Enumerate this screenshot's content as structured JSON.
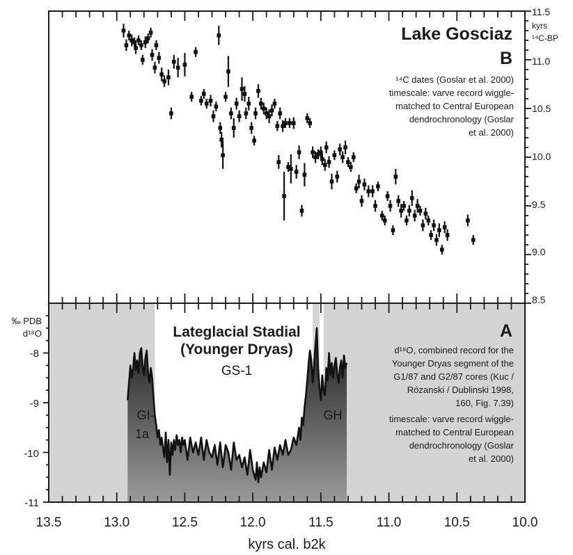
{
  "chart_data": [
    {
      "panel_id": "B",
      "type": "scatter",
      "title": "Lake Gosciaz",
      "panel_label": "B",
      "annotation": [
        "¹⁴C dates (Goslar et al. 2000)",
        "timescale: varve record wiggle-",
        "matched to Central European",
        "dendrochronology (Goslar",
        "et al. 2000)"
      ],
      "ylabel": [
        "kyrs",
        "¹⁴C-BP"
      ],
      "yticks": [
        "11.5",
        "11.0",
        "10.5",
        "10.0",
        "9.5",
        "9.0",
        "8.5"
      ],
      "ylim": [
        8.5,
        11.5
      ],
      "x_reversed": true,
      "grid": false,
      "points": [
        {
          "x": 12.95,
          "y": 11.3,
          "e": 0.07
        },
        {
          "x": 12.93,
          "y": 11.15,
          "e": 0.06
        },
        {
          "x": 12.91,
          "y": 11.25,
          "e": 0.05
        },
        {
          "x": 12.89,
          "y": 11.2,
          "e": 0.06
        },
        {
          "x": 12.87,
          "y": 11.18,
          "e": 0.05
        },
        {
          "x": 12.86,
          "y": 11.12,
          "e": 0.06
        },
        {
          "x": 12.84,
          "y": 11.2,
          "e": 0.05
        },
        {
          "x": 12.82,
          "y": 11.15,
          "e": 0.05
        },
        {
          "x": 12.81,
          "y": 11.0,
          "e": 0.05
        },
        {
          "x": 12.79,
          "y": 11.18,
          "e": 0.06
        },
        {
          "x": 12.77,
          "y": 11.22,
          "e": 0.05
        },
        {
          "x": 12.75,
          "y": 11.28,
          "e": 0.05
        },
        {
          "x": 12.74,
          "y": 11.05,
          "e": 0.06
        },
        {
          "x": 12.72,
          "y": 10.92,
          "e": 0.06
        },
        {
          "x": 12.71,
          "y": 11.15,
          "e": 0.05
        },
        {
          "x": 12.69,
          "y": 11.02,
          "e": 0.06
        },
        {
          "x": 12.67,
          "y": 10.85,
          "e": 0.07
        },
        {
          "x": 12.65,
          "y": 10.78,
          "e": 0.06
        },
        {
          "x": 12.62,
          "y": 10.82,
          "e": 0.08
        },
        {
          "x": 12.6,
          "y": 10.45,
          "e": 0.06
        },
        {
          "x": 12.58,
          "y": 10.98,
          "e": 0.07
        },
        {
          "x": 12.55,
          "y": 10.92,
          "e": 0.1
        },
        {
          "x": 12.5,
          "y": 10.95,
          "e": 0.12
        },
        {
          "x": 12.45,
          "y": 10.62,
          "e": 0.05
        },
        {
          "x": 12.42,
          "y": 11.08,
          "e": 0.05
        },
        {
          "x": 12.38,
          "y": 10.58,
          "e": 0.05
        },
        {
          "x": 12.36,
          "y": 10.65,
          "e": 0.05
        },
        {
          "x": 12.34,
          "y": 10.55,
          "e": 0.05
        },
        {
          "x": 12.31,
          "y": 10.58,
          "e": 0.06
        },
        {
          "x": 12.29,
          "y": 10.42,
          "e": 0.06
        },
        {
          "x": 12.27,
          "y": 10.52,
          "e": 0.05
        },
        {
          "x": 12.25,
          "y": 11.25,
          "e": 0.1
        },
        {
          "x": 12.24,
          "y": 10.3,
          "e": 0.06
        },
        {
          "x": 12.23,
          "y": 10.18,
          "e": 0.08
        },
        {
          "x": 12.22,
          "y": 10.02,
          "e": 0.14
        },
        {
          "x": 12.2,
          "y": 10.62,
          "e": 0.05
        },
        {
          "x": 12.18,
          "y": 10.88,
          "e": 0.16
        },
        {
          "x": 12.16,
          "y": 10.45,
          "e": 0.06
        },
        {
          "x": 12.14,
          "y": 10.3,
          "e": 0.1
        },
        {
          "x": 12.12,
          "y": 10.55,
          "e": 0.06
        },
        {
          "x": 12.1,
          "y": 10.42,
          "e": 0.06
        },
        {
          "x": 12.08,
          "y": 10.7,
          "e": 0.12
        },
        {
          "x": 12.06,
          "y": 10.65,
          "e": 0.08
        },
        {
          "x": 12.05,
          "y": 10.45,
          "e": 0.06
        },
        {
          "x": 12.03,
          "y": 10.55,
          "e": 0.07
        },
        {
          "x": 12.01,
          "y": 10.3,
          "e": 0.06
        },
        {
          "x": 11.99,
          "y": 10.17,
          "e": 0.05
        },
        {
          "x": 11.98,
          "y": 10.45,
          "e": 0.06
        },
        {
          "x": 11.96,
          "y": 10.68,
          "e": 0.07
        },
        {
          "x": 11.94,
          "y": 10.55,
          "e": 0.06
        },
        {
          "x": 11.92,
          "y": 10.5,
          "e": 0.06
        },
        {
          "x": 11.9,
          "y": 10.45,
          "e": 0.06
        },
        {
          "x": 11.88,
          "y": 10.42,
          "e": 0.07
        },
        {
          "x": 11.86,
          "y": 10.48,
          "e": 0.06
        },
        {
          "x": 11.84,
          "y": 10.55,
          "e": 0.05
        },
        {
          "x": 11.82,
          "y": 10.32,
          "e": 0.05
        },
        {
          "x": 11.81,
          "y": 9.95,
          "e": 0.07
        },
        {
          "x": 11.8,
          "y": 10.45,
          "e": 0.06
        },
        {
          "x": 11.78,
          "y": 10.32,
          "e": 0.06
        },
        {
          "x": 11.77,
          "y": 9.6,
          "e": 0.25
        },
        {
          "x": 11.76,
          "y": 10.35,
          "e": 0.05
        },
        {
          "x": 11.74,
          "y": 9.9,
          "e": 0.05
        },
        {
          "x": 11.73,
          "y": 10.35,
          "e": 0.05
        },
        {
          "x": 11.72,
          "y": 9.88,
          "e": 0.15
        },
        {
          "x": 11.7,
          "y": 10.35,
          "e": 0.06
        },
        {
          "x": 11.68,
          "y": 9.85,
          "e": 0.07
        },
        {
          "x": 11.66,
          "y": 10.05,
          "e": 0.07
        },
        {
          "x": 11.64,
          "y": 9.45,
          "e": 0.06
        },
        {
          "x": 11.62,
          "y": 9.82,
          "e": 0.12
        },
        {
          "x": 11.6,
          "y": 10.4,
          "e": 0.05
        },
        {
          "x": 11.58,
          "y": 10.35,
          "e": 0.05
        },
        {
          "x": 11.56,
          "y": 10.05,
          "e": 0.06
        },
        {
          "x": 11.54,
          "y": 10.0,
          "e": 0.06
        },
        {
          "x": 11.52,
          "y": 10.03,
          "e": 0.05
        },
        {
          "x": 11.5,
          "y": 10.05,
          "e": 0.06
        },
        {
          "x": 11.49,
          "y": 9.98,
          "e": 0.06
        },
        {
          "x": 11.47,
          "y": 9.92,
          "e": 0.06
        },
        {
          "x": 11.46,
          "y": 10.1,
          "e": 0.06
        },
        {
          "x": 11.44,
          "y": 9.95,
          "e": 0.06
        },
        {
          "x": 11.42,
          "y": 9.75,
          "e": 0.08
        },
        {
          "x": 11.4,
          "y": 10.02,
          "e": 0.05
        },
        {
          "x": 11.38,
          "y": 9.8,
          "e": 0.06
        },
        {
          "x": 11.36,
          "y": 10.08,
          "e": 0.06
        },
        {
          "x": 11.34,
          "y": 10.0,
          "e": 0.06
        },
        {
          "x": 11.32,
          "y": 10.1,
          "e": 0.07
        },
        {
          "x": 11.3,
          "y": 9.95,
          "e": 0.05
        },
        {
          "x": 11.28,
          "y": 9.9,
          "e": 0.05
        },
        {
          "x": 11.26,
          "y": 10.0,
          "e": 0.05
        },
        {
          "x": 11.24,
          "y": 9.68,
          "e": 0.05
        },
        {
          "x": 11.22,
          "y": 9.75,
          "e": 0.07
        },
        {
          "x": 11.2,
          "y": 9.55,
          "e": 0.06
        },
        {
          "x": 11.18,
          "y": 9.72,
          "e": 0.06
        },
        {
          "x": 11.15,
          "y": 9.65,
          "e": 0.06
        },
        {
          "x": 11.12,
          "y": 9.65,
          "e": 0.06
        },
        {
          "x": 11.1,
          "y": 9.5,
          "e": 0.06
        },
        {
          "x": 11.08,
          "y": 9.7,
          "e": 0.05
        },
        {
          "x": 11.05,
          "y": 9.4,
          "e": 0.05
        },
        {
          "x": 11.03,
          "y": 9.35,
          "e": 0.05
        },
        {
          "x": 11.01,
          "y": 9.6,
          "e": 0.05
        },
        {
          "x": 10.99,
          "y": 9.5,
          "e": 0.06
        },
        {
          "x": 10.97,
          "y": 9.25,
          "e": 0.05
        },
        {
          "x": 10.95,
          "y": 9.8,
          "e": 0.08
        },
        {
          "x": 10.93,
          "y": 9.55,
          "e": 0.06
        },
        {
          "x": 10.91,
          "y": 9.45,
          "e": 0.07
        },
        {
          "x": 10.89,
          "y": 9.5,
          "e": 0.05
        },
        {
          "x": 10.87,
          "y": 9.35,
          "e": 0.05
        },
        {
          "x": 10.85,
          "y": 9.45,
          "e": 0.06
        },
        {
          "x": 10.83,
          "y": 9.58,
          "e": 0.08
        },
        {
          "x": 10.81,
          "y": 9.4,
          "e": 0.06
        },
        {
          "x": 10.79,
          "y": 9.5,
          "e": 0.07
        },
        {
          "x": 10.77,
          "y": 9.45,
          "e": 0.05
        },
        {
          "x": 10.75,
          "y": 9.3,
          "e": 0.06
        },
        {
          "x": 10.73,
          "y": 9.42,
          "e": 0.06
        },
        {
          "x": 10.71,
          "y": 9.35,
          "e": 0.05
        },
        {
          "x": 10.69,
          "y": 9.2,
          "e": 0.05
        },
        {
          "x": 10.67,
          "y": 9.3,
          "e": 0.06
        },
        {
          "x": 10.65,
          "y": 9.15,
          "e": 0.06
        },
        {
          "x": 10.63,
          "y": 9.25,
          "e": 0.07
        },
        {
          "x": 10.61,
          "y": 9.05,
          "e": 0.05
        },
        {
          "x": 10.59,
          "y": 9.28,
          "e": 0.06
        },
        {
          "x": 10.57,
          "y": 9.2,
          "e": 0.06
        },
        {
          "x": 10.42,
          "y": 9.35,
          "e": 0.06
        },
        {
          "x": 10.38,
          "y": 9.15,
          "e": 0.05
        }
      ]
    },
    {
      "panel_id": "A",
      "type": "area",
      "title": [
        "Lateglacial Stadial",
        "(Younger Dryas)"
      ],
      "subtitle": "GS-1",
      "panel_label": "A",
      "annotation": [
        "d¹⁸O, combined record for the",
        "Younger Dryas segment of the",
        "G1/87 and G2/87 cores (Kuc /",
        "Rózanski / Dublinski 1998,",
        "160, Fig. 7.39)",
        "timescale: varve record wiggle-",
        "matched to Central European",
        "dendrochronology (Goslar",
        "et al. 2000)"
      ],
      "ylabel": [
        "‰ PDB",
        "d¹⁸O"
      ],
      "yticks": [
        "-8",
        "-9",
        "-10",
        "-11"
      ],
      "ylim": [
        -11,
        -7
      ],
      "x_reversed": true,
      "region_labels": [
        [
          "GI-",
          "1a"
        ],
        [
          "GH"
        ]
      ],
      "grid": false,
      "shading": {
        "background": [
          13.5,
          10.0
        ],
        "stadial_white": [
          12.72,
          11.56
        ],
        "stadial_white_2": [
          11.51,
          11.48
        ]
      },
      "series": [
        {
          "x": [
            12.92,
            12.91,
            12.9,
            12.89,
            12.88,
            12.87,
            12.86,
            12.85,
            12.84,
            12.83,
            12.82,
            12.81,
            12.8,
            12.79,
            12.78,
            12.77,
            12.76,
            12.75,
            12.74,
            12.73,
            12.72,
            12.71,
            12.7,
            12.69,
            12.68,
            12.67,
            12.66,
            12.65,
            12.64,
            12.63,
            12.62,
            12.61,
            12.6,
            12.59,
            12.58,
            12.57,
            12.56,
            12.55,
            12.54,
            12.53,
            12.52,
            12.51,
            12.5,
            12.48,
            12.46,
            12.44,
            12.42,
            12.4,
            12.38,
            12.36,
            12.34,
            12.32,
            12.3,
            12.28,
            12.26,
            12.24,
            12.22,
            12.2,
            12.18,
            12.16,
            12.14,
            12.12,
            12.1,
            12.08,
            12.06,
            12.04,
            12.02,
            12.0,
            11.98,
            11.97,
            11.96,
            11.95,
            11.94,
            11.92,
            11.9,
            11.88,
            11.86,
            11.84,
            11.82,
            11.8,
            11.78,
            11.76,
            11.74,
            11.72,
            11.7,
            11.68,
            11.66,
            11.65,
            11.64,
            11.63,
            11.62,
            11.61,
            11.6,
            11.59,
            11.58,
            11.57,
            11.56,
            11.55,
            11.54,
            11.53,
            11.52,
            11.51,
            11.5,
            11.49,
            11.48,
            11.47,
            11.46,
            11.45,
            11.44,
            11.43,
            11.42,
            11.41,
            11.4,
            11.39,
            11.38,
            11.37,
            11.36,
            11.35,
            11.34,
            11.33,
            11.32,
            11.31
          ],
          "values": [
            -8.95,
            -8.6,
            -8.25,
            -8.5,
            -8.3,
            -8.0,
            -8.35,
            -8.15,
            -8.4,
            -8.0,
            -7.9,
            -8.25,
            -8.45,
            -8.1,
            -7.95,
            -8.4,
            -8.6,
            -8.3,
            -8.5,
            -8.9,
            -9.25,
            -9.45,
            -9.7,
            -9.55,
            -9.85,
            -9.7,
            -9.9,
            -10.1,
            -9.6,
            -10.2,
            -9.75,
            -10.45,
            -9.8,
            -10.05,
            -9.75,
            -9.95,
            -9.65,
            -9.85,
            -9.75,
            -10.0,
            -9.7,
            -9.85,
            -9.75,
            -10.15,
            -9.7,
            -10.0,
            -9.8,
            -10.05,
            -9.7,
            -10.15,
            -9.75,
            -10.0,
            -10.1,
            -9.85,
            -10.25,
            -9.8,
            -10.3,
            -9.85,
            -10.0,
            -10.35,
            -9.8,
            -10.15,
            -10.05,
            -10.3,
            -10.1,
            -10.45,
            -9.95,
            -10.35,
            -10.55,
            -10.2,
            -10.6,
            -10.3,
            -10.5,
            -10.2,
            -10.4,
            -9.95,
            -10.35,
            -9.9,
            -10.15,
            -9.85,
            -10.05,
            -9.75,
            -10.05,
            -9.95,
            -9.7,
            -9.85,
            -9.5,
            -9.75,
            -9.3,
            -9.45,
            -9.1,
            -8.85,
            -8.55,
            -8.2,
            -7.95,
            -8.15,
            -8.6,
            -8.25,
            -7.85,
            -7.5,
            -8.3,
            -8.7,
            -8.95,
            -8.45,
            -8.75,
            -8.85,
            -8.3,
            -8.55,
            -8.0,
            -8.45,
            -8.2,
            -8.5,
            -8.25,
            -8.1,
            -8.4,
            -8.6,
            -8.3,
            -8.15,
            -8.5,
            -8.05,
            -8.3,
            -8.2
          ]
        }
      ]
    }
  ],
  "shared_x": {
    "xlabel": "kyrs cal. b2k",
    "xticks": [
      "13.5",
      "13.0",
      "12.5",
      "12.0",
      "11.5",
      "11.0",
      "10.5",
      "10.0"
    ],
    "xlim": [
      13.5,
      10.0
    ]
  },
  "colors": {
    "panel_bg": "#d4d4d4",
    "area_top": "#1c1c1c",
    "area_bottom": "#9a9a9a",
    "ink": "#1a1a1a"
  }
}
